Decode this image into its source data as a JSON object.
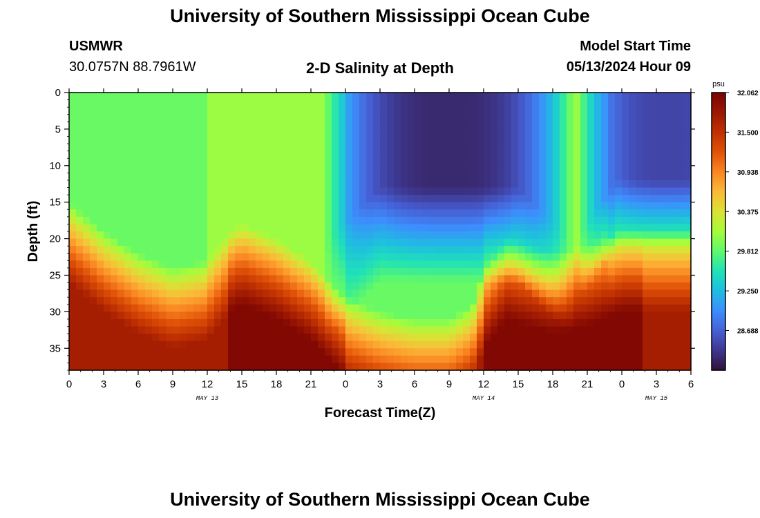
{
  "header": {
    "title": "University of Southern Mississippi Ocean Cube",
    "station": "USMWR",
    "coords": "30.0757N  88.7961W",
    "subtitle": "2-D Salinity at Depth",
    "model_label": "Model Start Time",
    "model_time": "05/13/2024 Hour 09"
  },
  "footer": {
    "title": "University of Southern Mississippi Ocean Cube"
  },
  "chart_data": {
    "type": "heatmap",
    "title": "2-D Salinity at Depth",
    "xlabel": "Forecast Time(Z)",
    "ylabel": "Depth (ft)",
    "x_ticks": [
      "0",
      "3",
      "6",
      "9",
      "12",
      "15",
      "18",
      "21",
      "0",
      "3",
      "6",
      "9",
      "12",
      "15",
      "18",
      "21",
      "0",
      "3",
      "6"
    ],
    "day_labels": [
      {
        "text": "MAY 13",
        "at_tick": 4
      },
      {
        "text": "MAY 14",
        "at_tick": 12
      },
      {
        "text": "MAY 15",
        "at_tick": 17
      }
    ],
    "y_ticks": [
      0,
      5,
      10,
      15,
      20,
      25,
      30,
      35
    ],
    "ylim": [
      0,
      38
    ],
    "x_range_hours": [
      0,
      54
    ],
    "colorbar": {
      "unit": "psu",
      "min": 28.125,
      "max": 32.062,
      "tick_values": [
        "32.062",
        "31.500",
        "30.938",
        "30.375",
        "29.812",
        "29.250",
        "28.688"
      ],
      "colors": [
        "#30123b",
        "#3e378f",
        "#4660d5",
        "#3d8efd",
        "#1fbde1",
        "#20e2b6",
        "#5ef96b",
        "#a6fc3c",
        "#dbe236",
        "#fbb938",
        "#fa8622",
        "#e05207",
        "#c03102",
        "#9b1702",
        "#7a0403"
      ]
    },
    "pycnocline_depth_ft_by_hour": [
      [
        0,
        20
      ],
      [
        3,
        24
      ],
      [
        6,
        27
      ],
      [
        9,
        29
      ],
      [
        12,
        28
      ],
      [
        14,
        24
      ],
      [
        15,
        23
      ],
      [
        18,
        25
      ],
      [
        21,
        28
      ],
      [
        24,
        33
      ],
      [
        27,
        35
      ],
      [
        30,
        36
      ],
      [
        33,
        36
      ],
      [
        35,
        34
      ],
      [
        36,
        29
      ],
      [
        38,
        25
      ],
      [
        40,
        26
      ],
      [
        42,
        27
      ],
      [
        45,
        26
      ],
      [
        48,
        24
      ],
      [
        51,
        24
      ],
      [
        54,
        24
      ]
    ],
    "fresh_lens": [
      {
        "center_hour": 33,
        "base_depth_ft": 13,
        "core_psu": 28.3
      },
      {
        "center_hour": 52,
        "base_depth_ft": 12,
        "core_psu": 28.5
      }
    ]
  }
}
